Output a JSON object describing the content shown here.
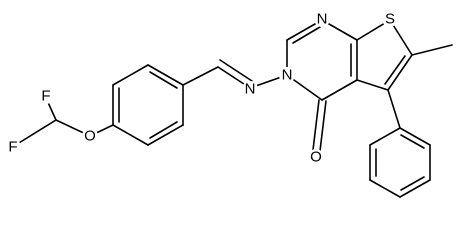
{
  "atoms": [
    {
      "label": "F"
    },
    {
      "label": "F"
    },
    {
      "label": "O"
    },
    {
      "label": "N"
    },
    {
      "label": "N"
    },
    {
      "label": "N"
    },
    {
      "label": "S"
    },
    {
      "label": "O"
    }
  ]
}
